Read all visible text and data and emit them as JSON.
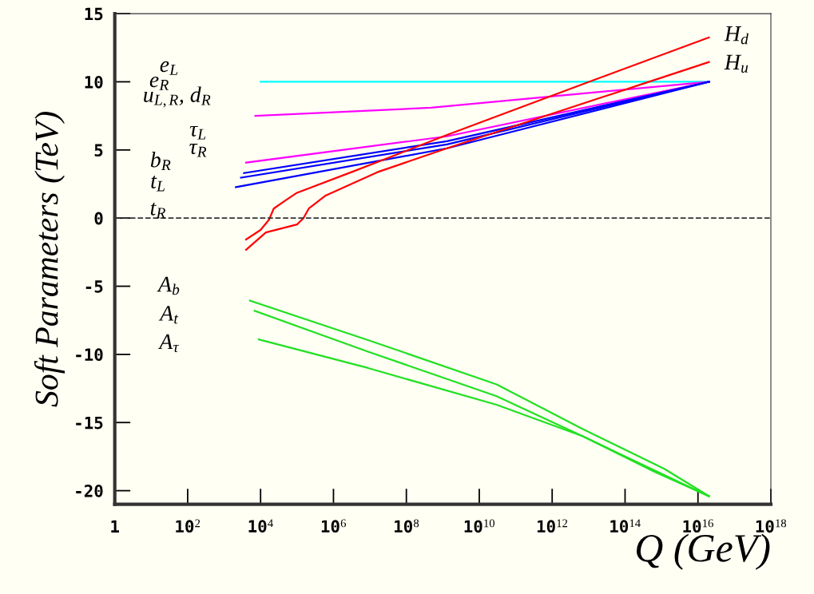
{
  "chart_data": {
    "type": "line",
    "xlabel": "Q (GeV)",
    "ylabel": "Soft Parameters (TeV)",
    "log": "x",
    "xlim": [
      1,
      1e+18
    ],
    "ylim": [
      -21,
      15
    ],
    "xticks": [
      {
        "value": 1,
        "label": "1"
      },
      {
        "value": 100,
        "label": "10$^{2}$"
      },
      {
        "value": 10000.0,
        "label": "10$^{4}$"
      },
      {
        "value": 1000000.0,
        "label": "10$^{6}$"
      },
      {
        "value": 100000000.0,
        "label": "10$^{8}$"
      },
      {
        "value": 10000000000.0,
        "label": "10$^{10}$"
      },
      {
        "value": 1000000000000.0,
        "label": "10$^{12}$"
      },
      {
        "value": 100000000000000.0,
        "label": "10$^{14}$"
      },
      {
        "value": 1e+16,
        "label": "10$^{16}$"
      },
      {
        "value": 1e+18,
        "label": "10$^{18}$"
      }
    ],
    "yticks": [
      -20,
      -15,
      -10,
      -5,
      0,
      5,
      10,
      15
    ],
    "grid": false,
    "marker": "none",
    "line_style": "solid",
    "series": [
      {
        "color": "#00ffff",
        "x": [
          10000.0,
          2e+16
        ],
        "values": [
          10,
          10
        ]
      },
      {
        "color": "#ff00ff",
        "x": [
          7200,
          480000000.0,
          2e+16
        ],
        "values": [
          7.5,
          8.1,
          10
        ]
      },
      {
        "color": "#ff00ff",
        "x": [
          4000,
          1300000000.0,
          2e+16
        ],
        "values": [
          4.07,
          6.0,
          10
        ]
      },
      {
        "color": "#0000ff",
        "x": [
          3500,
          1300000000.0,
          2e+16
        ],
        "values": [
          3.3,
          5.64,
          10
        ]
      },
      {
        "color": "#0000ff",
        "x": [
          2900,
          1300000000.0,
          2e+16
        ],
        "values": [
          2.97,
          5.41,
          10
        ]
      },
      {
        "color": "#0000ff",
        "x": [
          2100,
          1300000000.0,
          2e+16
        ],
        "values": [
          2.27,
          5.12,
          10
        ]
      },
      {
        "color": "#ff0000",
        "x": [
          4000,
          10000.0,
          17000.0,
          23000.0,
          47000.0,
          100000.0,
          3100000.0,
          1300000000.0,
          13000000000000.0,
          2e+16
        ],
        "values": [
          -1.57,
          -0.87,
          -0.12,
          0.7,
          1.28,
          1.86,
          3.37,
          6.1,
          10.1,
          13.26
        ]
      },
      {
        "color": "#ff0000",
        "x": [
          4000,
          14000.0,
          100000.0,
          150000.0,
          210000.0,
          590000.0,
          16000000.0,
          1300000000.0,
          350000000000000.0,
          2e+16
        ],
        "values": [
          -2.33,
          -1.05,
          -0.47,
          0,
          0.7,
          1.63,
          3.37,
          5.12,
          9.9,
          11.45
        ]
      },
      {
        "color": "#22e022",
        "x": [
          5100,
          8900000.0,
          30000000000.0,
          6800000000000.0,
          1200000000000000.0,
          2e+16
        ],
        "values": [
          -6.05,
          -8.95,
          -12.2,
          -15.47,
          -18.4,
          -20.4
        ]
      },
      {
        "color": "#22e022",
        "x": [
          6900,
          8900000.0,
          30000000000.0,
          6800000000000.0,
          630000000000000.0,
          2e+16
        ],
        "values": [
          -6.8,
          -9.8,
          -13.07,
          -16.0,
          -18.5,
          -20.4
        ]
      },
      {
        "color": "#22e022",
        "x": [
          8900,
          8900000.0,
          30000000000.0,
          6800000000000.0,
          630000000000000.0,
          2e+16
        ],
        "values": [
          -8.9,
          -11.0,
          -13.7,
          -16.0,
          -18.6,
          -20.4
        ]
      }
    ],
    "ref_lines": [
      {
        "axis": "y",
        "value": 0,
        "color": "#333333",
        "line_style": "dashed"
      }
    ],
    "annotations": [
      "e$_{L}$",
      "e$_{R}$",
      "u$_{L,R}$, d$_{R}$",
      "τ$_{L}$",
      "τ$_{R}$",
      "b$_{R}$",
      "t$_{L}$",
      "t$_{R}$",
      "A$_{b}$",
      "A$_{t}$",
      "A$_{τ}$",
      "H$_{d}$",
      "H$_{u}$"
    ]
  }
}
